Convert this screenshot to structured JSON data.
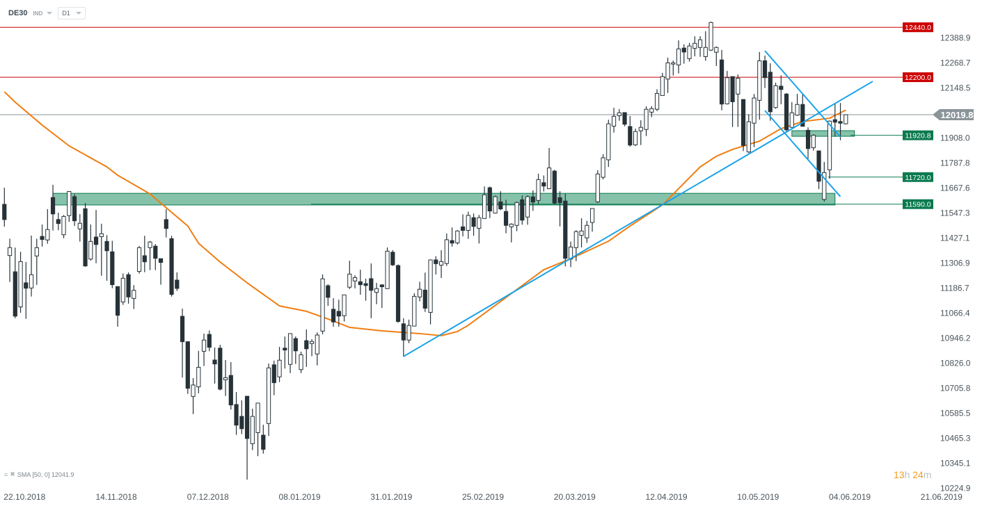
{
  "header": {
    "symbol": "DE30",
    "category": "IND",
    "timeframe": "D1"
  },
  "legend": {
    "indicator": "SMA [50, 0] 12041.9"
  },
  "timer": {
    "hours": "13",
    "h": "h",
    "minutes": "24",
    "m": "m"
  },
  "colors": {
    "bull_body": "#ffffff",
    "bear_body": "#263238",
    "candle_line": "#263238",
    "sma": "#f07d12",
    "trendline": "#1aa3e8",
    "resistance": "#cc0000",
    "support": "#0b7a4f",
    "zone_fill": "#7fbfa5",
    "current_price": "#8a9499"
  },
  "chart_data": {
    "type": "candlestick",
    "symbol": "DE30",
    "timeframe": "D1",
    "y_ticks": [
      "12388.9",
      "12268.7",
      "12148.5",
      "11908.0",
      "11787.8",
      "11667.6",
      "11547.3",
      "11427.1",
      "11306.9",
      "11186.7",
      "11066.4",
      "10946.2",
      "10826.0",
      "10705.8",
      "10585.5",
      "10465.3",
      "10345.1",
      "10224.9"
    ],
    "x_ticks": [
      "22.10.2018",
      "14.11.2018",
      "07.12.2018",
      "08.01.2019",
      "31.01.2019",
      "25.02.2019",
      "20.03.2019",
      "12.04.2019",
      "10.05.2019",
      "04.06.2019",
      "21.06.2019"
    ],
    "ylim": [
      10224.9,
      12440
    ],
    "ohlc": [
      [
        11589,
        11669,
        11482,
        11516
      ],
      [
        11343,
        11424,
        11216,
        11381
      ],
      [
        11265,
        11381,
        11042,
        11052
      ],
      [
        11096,
        11361,
        11068,
        11314
      ],
      [
        11212,
        11312,
        11039,
        11186
      ],
      [
        11187,
        11439,
        11146,
        11251
      ],
      [
        11341,
        11424,
        11202,
        11381
      ],
      [
        11435,
        11492,
        11386,
        11420
      ],
      [
        11418,
        11566,
        11400,
        11468
      ],
      [
        11622,
        11683,
        11463,
        11543
      ],
      [
        11516,
        11549,
        11465,
        11497
      ],
      [
        11443,
        11538,
        11426,
        11531
      ],
      [
        11535,
        11652,
        11505,
        11651
      ],
      [
        11626,
        11638,
        11485,
        11510
      ],
      [
        11471,
        11542,
        11410,
        11498
      ],
      [
        11568,
        11595,
        11289,
        11293
      ],
      [
        11326,
        11492,
        11319,
        11411
      ],
      [
        11432,
        11562,
        11306,
        11396
      ],
      [
        11434,
        11496,
        11246,
        11448
      ],
      [
        11411,
        11441,
        11222,
        11366
      ],
      [
        11361,
        11414,
        11186,
        11203
      ],
      [
        11194,
        11194,
        11001,
        11056
      ],
      [
        11120,
        11257,
        11106,
        11234
      ],
      [
        11251,
        11262,
        11112,
        11144
      ],
      [
        11137,
        11201,
        11086,
        11176
      ],
      [
        11267,
        11389,
        11256,
        11381
      ],
      [
        11342,
        11438,
        11263,
        11313
      ],
      [
        11381,
        11413,
        11273,
        11408
      ],
      [
        11388,
        11398,
        11273,
        11330
      ],
      [
        11328,
        11328,
        11203,
        11310
      ],
      [
        11516,
        11566,
        11430,
        11473
      ],
      [
        11424,
        11438,
        11146,
        11156
      ],
      [
        11225,
        11262,
        11173,
        11185
      ],
      [
        11051,
        11088,
        10756,
        10929
      ],
      [
        10929,
        10929,
        10678,
        10705
      ],
      [
        10666,
        10754,
        10581,
        10721
      ],
      [
        10712,
        10885,
        10681,
        10806
      ],
      [
        10883,
        10968,
        10812,
        10937
      ],
      [
        10964,
        10983,
        10883,
        10902
      ],
      [
        10841,
        10901,
        10728,
        10822
      ],
      [
        10898,
        10914,
        10695,
        10701
      ],
      [
        10746,
        10841,
        10668,
        10756
      ],
      [
        10767,
        10831,
        10603,
        10625
      ],
      [
        10627,
        10687,
        10481,
        10528
      ],
      [
        10570,
        10647,
        10485,
        10511
      ],
      [
        10667,
        10667,
        10266,
        10464
      ],
      [
        10439,
        10607,
        10408,
        10570
      ],
      [
        10492,
        10634,
        10379,
        10634
      ],
      [
        10480,
        10530,
        10391,
        10412
      ],
      [
        10536,
        10824,
        10476,
        10803
      ],
      [
        10818,
        10838,
        10672,
        10732
      ],
      [
        10760,
        10904,
        10735,
        10840
      ],
      [
        10898,
        10954,
        10800,
        10889
      ],
      [
        10820,
        10968,
        10778,
        10968
      ],
      [
        10944,
        10954,
        10822,
        10885
      ],
      [
        10795,
        10881,
        10778,
        10866
      ],
      [
        10934,
        10988,
        10808,
        10895
      ],
      [
        10920,
        10941,
        10859,
        10930
      ],
      [
        10870,
        10974,
        10815,
        10961
      ],
      [
        10980,
        11252,
        10965,
        11231
      ],
      [
        11198,
        11205,
        11101,
        11142
      ],
      [
        11085,
        11138,
        11001,
        11024
      ],
      [
        11075,
        11131,
        11001,
        11052
      ],
      [
        11054,
        11154,
        11026,
        11154
      ],
      [
        11191,
        11318,
        11182,
        11254
      ],
      [
        11221,
        11248,
        11185,
        11237
      ],
      [
        11217,
        11275,
        11155,
        11203
      ],
      [
        11208,
        11232,
        11126,
        11199
      ],
      [
        11232,
        11305,
        11042,
        11176
      ],
      [
        11166,
        11212,
        11109,
        11184
      ],
      [
        11202,
        11205,
        11091,
        11193
      ],
      [
        11184,
        11382,
        11182,
        11364
      ],
      [
        11359,
        11369,
        11293,
        11298
      ],
      [
        11295,
        11300,
        11020,
        11026
      ],
      [
        11015,
        11042,
        10857,
        10937
      ],
      [
        10937,
        11035,
        10922,
        11007
      ],
      [
        11004,
        11162,
        11004,
        11147
      ],
      [
        11144,
        11217,
        11123,
        11181
      ],
      [
        11177,
        11261,
        11072,
        11090
      ],
      [
        11070,
        11324,
        11012,
        11322
      ],
      [
        11322,
        11340,
        11252,
        11304
      ],
      [
        11297,
        11369,
        11235,
        11314
      ],
      [
        11305,
        11449,
        11293,
        11419
      ],
      [
        11415,
        11478,
        11386,
        11403
      ],
      [
        11404,
        11465,
        11396,
        11461
      ],
      [
        11481,
        11541,
        11435,
        11464
      ],
      [
        11464,
        11554,
        11423,
        11536
      ],
      [
        11525,
        11545,
        11438,
        11483
      ],
      [
        11474,
        11538,
        11401,
        11525
      ],
      [
        11521,
        11675,
        11521,
        11635
      ],
      [
        11669,
        11675,
        11523,
        11557
      ],
      [
        11547,
        11631,
        11545,
        11626
      ],
      [
        11601,
        11652,
        11561,
        11567
      ],
      [
        11555,
        11611,
        11450,
        11488
      ],
      [
        11481,
        11498,
        11406,
        11494
      ],
      [
        11488,
        11602,
        11460,
        11598
      ],
      [
        11611,
        11632,
        11491,
        11513
      ],
      [
        11528,
        11632,
        11491,
        11626
      ],
      [
        11625,
        11656,
        11558,
        11600
      ],
      [
        11608,
        11736,
        11591,
        11708
      ],
      [
        11693,
        11728,
        11651,
        11677
      ],
      [
        11664,
        11860,
        11662,
        11764
      ],
      [
        11749,
        11755,
        11590,
        11595
      ],
      [
        11621,
        11652,
        11483,
        11597
      ],
      [
        11605,
        11640,
        11291,
        11330
      ],
      [
        11326,
        11410,
        11287,
        11384
      ],
      [
        11381,
        11465,
        11316,
        11458
      ],
      [
        11440,
        11522,
        11382,
        11461
      ],
      [
        11428,
        11510,
        11404,
        11488
      ],
      [
        11502,
        11569,
        11458,
        11569
      ],
      [
        11601,
        11753,
        11596,
        11735
      ],
      [
        11719,
        11830,
        11709,
        11813
      ],
      [
        11803,
        11996,
        11769,
        11976
      ],
      [
        11965,
        12053,
        11934,
        12012
      ],
      [
        12015,
        12047,
        11991,
        12029
      ],
      [
        12030,
        12031,
        11964,
        11974
      ],
      [
        11963,
        12013,
        11866,
        11874
      ],
      [
        11875,
        11953,
        11869,
        11939
      ],
      [
        11942,
        11993,
        11874,
        11959
      ],
      [
        11949,
        12060,
        11917,
        12046
      ],
      [
        12032,
        12061,
        12008,
        12049
      ],
      [
        12046,
        12142,
        12037,
        12122
      ],
      [
        12112,
        12221,
        12112,
        12203
      ],
      [
        12191,
        12294,
        12124,
        12269
      ],
      [
        12263,
        12280,
        12208,
        12269
      ],
      [
        12259,
        12377,
        12218,
        12336
      ],
      [
        12340,
        12358,
        12265,
        12321
      ],
      [
        12289,
        12365,
        12275,
        12350
      ],
      [
        12339,
        12397,
        12300,
        12363
      ],
      [
        12343,
        12397,
        12298,
        12380
      ],
      [
        12299,
        12421,
        12279,
        12343
      ],
      [
        12330,
        12467,
        12326,
        12463
      ],
      [
        12320,
        12348,
        12254,
        12343
      ],
      [
        12283,
        12331,
        12041,
        12071
      ],
      [
        12072,
        12230,
        12069,
        12198
      ],
      [
        12203,
        12204,
        11961,
        12082
      ],
      [
        12119,
        12213,
        11961,
        12195
      ],
      [
        12093,
        12093,
        11845,
        11872
      ],
      [
        11841,
        12022,
        11836,
        11986
      ],
      [
        11979,
        12119,
        11864,
        12100
      ],
      [
        12089,
        12321,
        11996,
        12279
      ],
      [
        12279,
        12304,
        12148,
        12198
      ],
      [
        12224,
        12267,
        11991,
        12034
      ],
      [
        12054,
        12174,
        12048,
        12159
      ],
      [
        12157,
        12209,
        12070,
        12141
      ],
      [
        12119,
        12124,
        11936,
        11947
      ],
      [
        11959,
        12080,
        11957,
        12029
      ],
      [
        12018,
        12120,
        12014,
        12069
      ],
      [
        12069,
        12120,
        11964,
        11964
      ],
      [
        11945,
        11959,
        11808,
        11857
      ],
      [
        11861,
        11925,
        11847,
        11921
      ],
      [
        11846,
        11846,
        11662,
        11700
      ],
      [
        11613,
        11793,
        11602,
        11742
      ],
      [
        11755,
        11992,
        11712,
        11989
      ],
      [
        11996,
        12074,
        11914,
        11984
      ],
      [
        11987,
        12076,
        11897,
        11979
      ],
      [
        11976,
        12022,
        11973,
        12019.8
      ]
    ],
    "sma": {
      "name": "SMA [50, 0]",
      "last": 12041.9,
      "points": [
        [
          1,
          12130
        ],
        [
          3,
          12080
        ],
        [
          8,
          11970
        ],
        [
          13,
          11870
        ],
        [
          20,
          11769
        ],
        [
          22,
          11729
        ],
        [
          28,
          11639
        ],
        [
          35,
          11485
        ],
        [
          37,
          11402
        ],
        [
          41,
          11312
        ],
        [
          46,
          11212
        ],
        [
          52,
          11101
        ],
        [
          57,
          11075
        ],
        [
          61,
          11038
        ],
        [
          65,
          10998
        ],
        [
          71,
          10981
        ],
        [
          78,
          10968
        ],
        [
          82,
          10958
        ],
        [
          85,
          10978
        ],
        [
          87,
          11008
        ],
        [
          101,
          11275
        ],
        [
          106,
          11328
        ],
        [
          113,
          11412
        ],
        [
          117,
          11485
        ],
        [
          123,
          11586
        ],
        [
          130,
          11769
        ],
        [
          133,
          11820
        ],
        [
          136,
          11853
        ],
        [
          141,
          11893
        ],
        [
          145,
          11953
        ],
        [
          149,
          11987
        ],
        [
          154,
          12003
        ],
        [
          157,
          12042
        ]
      ]
    },
    "current_price": {
      "value": 12019.8,
      "label": "12019.8"
    },
    "levels": [
      {
        "value": 12440.0,
        "label": "12440.0",
        "kind": "resistance"
      },
      {
        "value": 12200.0,
        "label": "12200.0",
        "kind": "resistance"
      },
      {
        "value": 11920.8,
        "label": "11920.8",
        "kind": "support"
      },
      {
        "value": 11720.0,
        "label": "11720.0",
        "kind": "support"
      },
      {
        "value": 11590.0,
        "label": "11590.0",
        "kind": "support"
      }
    ],
    "zones": [
      {
        "from_index": 10,
        "to_index": 155,
        "low": 11586,
        "high": 11642
      },
      {
        "from_index": 147,
        "to_index": 158.6,
        "low": 11916,
        "high": 11943
      }
    ],
    "trendlines": [
      {
        "from": [
          75,
          10858
        ],
        "to": [
          162,
          12180
        ]
      },
      {
        "from": [
          142,
          12327
        ],
        "to": [
          156,
          11913
        ]
      },
      {
        "from": [
          142,
          12040
        ],
        "to": [
          156,
          11626
        ]
      }
    ]
  }
}
